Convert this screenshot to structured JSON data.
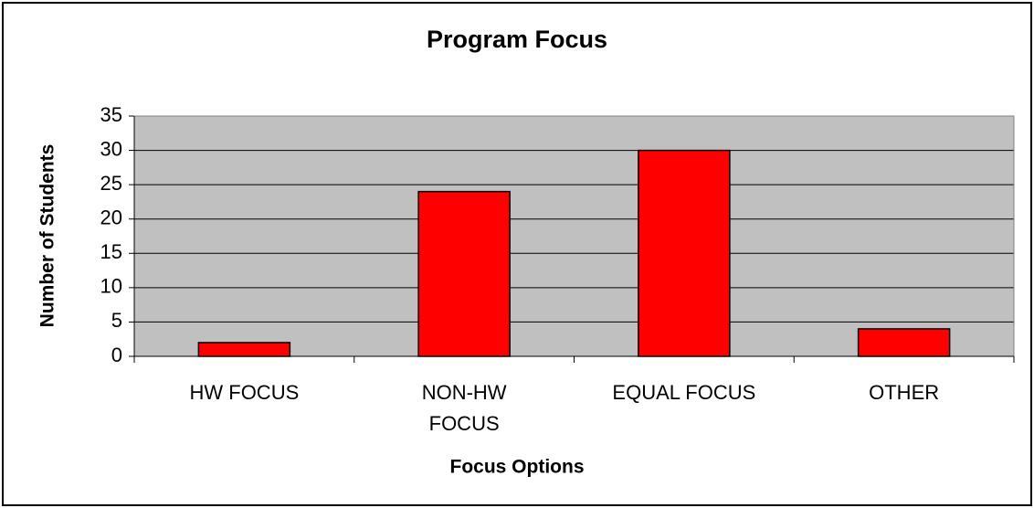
{
  "chart_data": {
    "type": "bar",
    "title": "Program Focus",
    "x_label": "Focus Options",
    "y_label": "Number of Students",
    "categories": [
      "HW FOCUS",
      "NON-HW FOCUS",
      "EQUAL FOCUS",
      "OTHER"
    ],
    "values": [
      2,
      24,
      30,
      4
    ],
    "color": "#ff0000",
    "ylim": [
      0,
      35
    ],
    "yticks": [
      0,
      5,
      10,
      15,
      20,
      25,
      30,
      35
    ],
    "grid": true
  }
}
